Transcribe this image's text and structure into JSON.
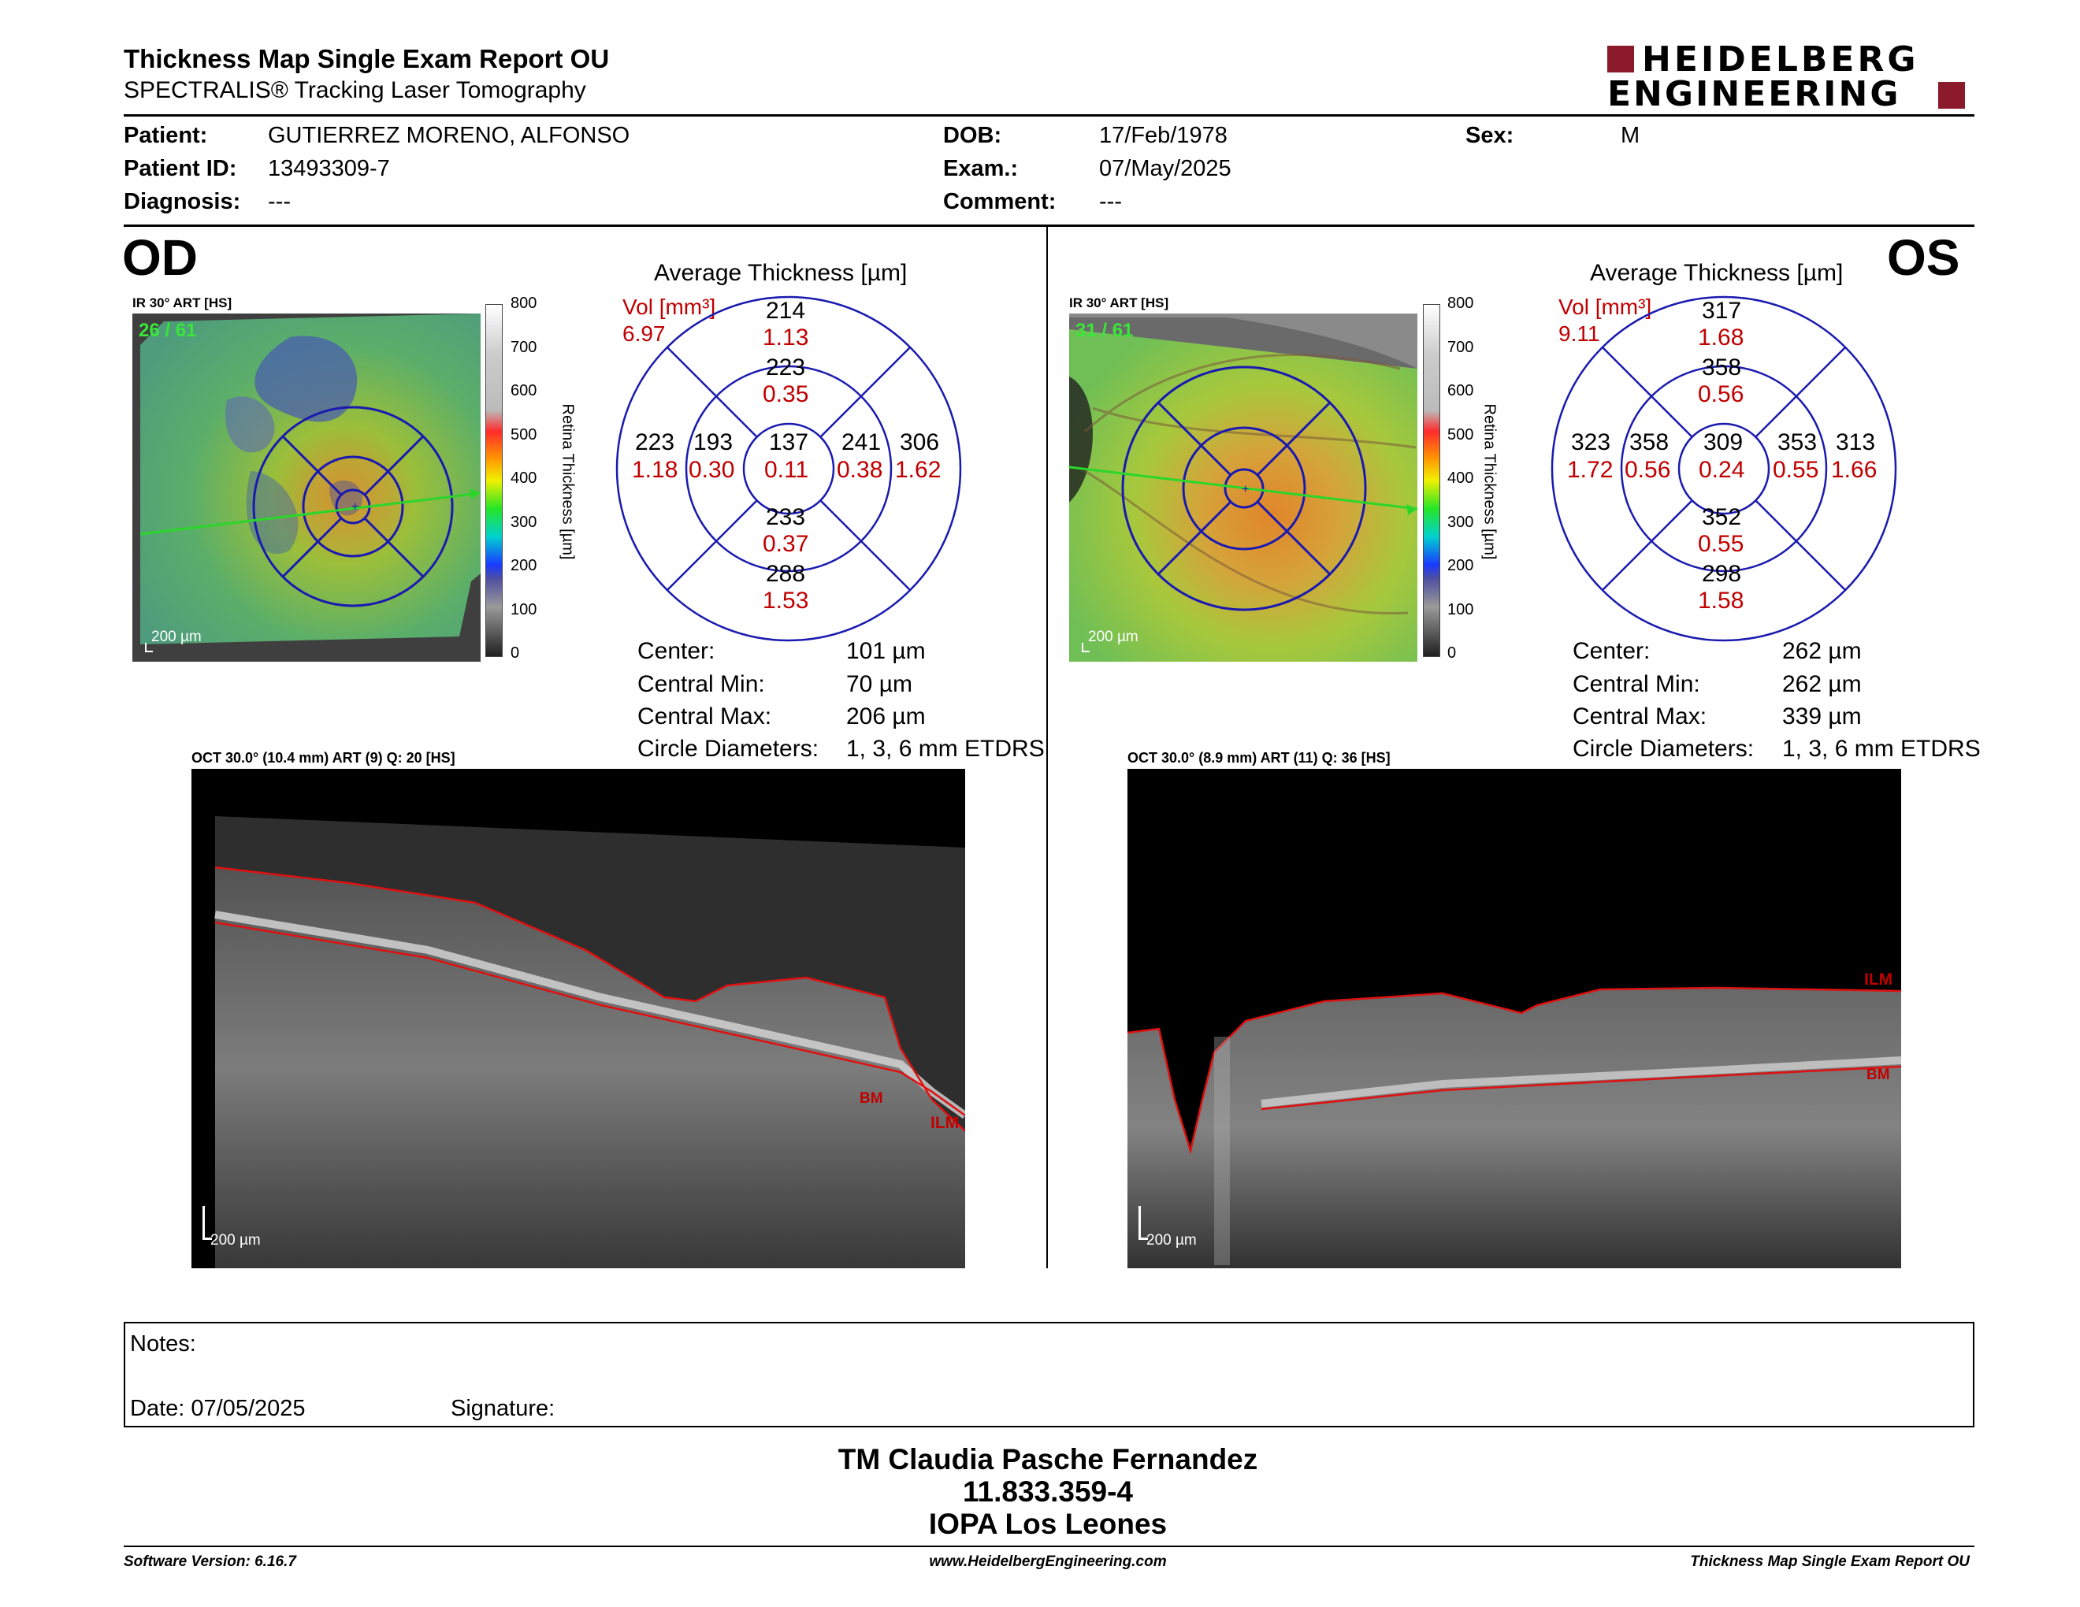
{
  "header": {
    "title": "Thickness Map Single Exam Report OU",
    "subtitle": "SPECTRALIS® Tracking Laser Tomography",
    "brand_line1": "HEIDELBERG",
    "brand_line2": "ENGINEERING",
    "brand_color": "#8b1a2b"
  },
  "patient": {
    "patient_label": "Patient:",
    "patient_value": "GUTIERREZ MORENO, ALFONSO",
    "id_label": "Patient ID:",
    "id_value": "13493309-7",
    "diag_label": "Diagnosis:",
    "diag_value": "---",
    "dob_label": "DOB:",
    "dob_value": "17/Feb/1978",
    "exam_label": "Exam.:",
    "exam_value": "07/May/2025",
    "comment_label": "Comment:",
    "comment_value": "---",
    "sex_label": "Sex:",
    "sex_value": "M"
  },
  "od": {
    "eye": "OD",
    "ir_label": "IR 30° ART [HS]",
    "frame": "26 / 61",
    "scale": "200 µm",
    "colorbar_ticks": [
      "800",
      "700",
      "600",
      "500",
      "400",
      "300",
      "200",
      "100",
      "0"
    ],
    "colorbar_title": "Retina Thickness [µm]",
    "grid_title": "Average Thickness [µm]",
    "vol_label": "Vol [mm³]",
    "vol_value": "6.97",
    "sectors": {
      "outer_sup": "214",
      "outer_sup_v": "1.13",
      "inner_sup": "223",
      "inner_sup_v": "0.35",
      "outer_left": "223",
      "outer_left_v": "1.18",
      "inner_left": "193",
      "inner_left_v": "0.30",
      "center": "137",
      "center_v": "0.11",
      "inner_right": "241",
      "inner_right_v": "0.38",
      "outer_right": "306",
      "outer_right_v": "1.62",
      "inner_inf": "233",
      "inner_inf_v": "0.37",
      "outer_inf": "288",
      "outer_inf_v": "1.53"
    },
    "stats": {
      "center_label": "Center:",
      "center": "101 µm",
      "min_label": "Central Min:",
      "min": "70 µm",
      "max_label": "Central Max:",
      "max": "206 µm",
      "diam_label": "Circle Diameters:",
      "diam": "1, 3, 6 mm ETDRS"
    },
    "oct_label": "OCT 30.0° (10.4 mm) ART (9) Q: 20 [HS]",
    "oct_scale": "200 µm",
    "ilm": "ILM",
    "bm": "BM"
  },
  "os": {
    "eye": "OS",
    "ir_label": "IR 30° ART [HS]",
    "frame": "31 / 61",
    "scale": "200 µm",
    "colorbar_ticks": [
      "800",
      "700",
      "600",
      "500",
      "400",
      "300",
      "200",
      "100",
      "0"
    ],
    "colorbar_title": "Retina Thickness [µm]",
    "grid_title": "Average Thickness [µm]",
    "vol_label": "Vol [mm³]",
    "vol_value": "9.11",
    "sectors": {
      "outer_sup": "317",
      "outer_sup_v": "1.68",
      "inner_sup": "358",
      "inner_sup_v": "0.56",
      "outer_left": "323",
      "outer_left_v": "1.72",
      "inner_left": "358",
      "inner_left_v": "0.56",
      "center": "309",
      "center_v": "0.24",
      "inner_right": "353",
      "inner_right_v": "0.55",
      "outer_right": "313",
      "outer_right_v": "1.66",
      "inner_inf": "352",
      "inner_inf_v": "0.55",
      "outer_inf": "298",
      "outer_inf_v": "1.58"
    },
    "stats": {
      "center_label": "Center:",
      "center": "262 µm",
      "min_label": "Central Min:",
      "min": "262 µm",
      "max_label": "Central Max:",
      "max": "339 µm",
      "diam_label": "Circle Diameters:",
      "diam": "1, 3, 6 mm ETDRS"
    },
    "oct_label": "OCT 30.0° (8.9 mm) ART (11) Q: 36 [HS]",
    "oct_scale": "200 µm",
    "ilm": "ILM",
    "bm": "BM"
  },
  "notes": {
    "notes_label": "Notes:",
    "date_label": "Date: 07/05/2025",
    "signature_label": "Signature:"
  },
  "signer": {
    "name": "TM Claudia Pasche Fernandez",
    "id": "11.833.359-4",
    "org": "IOPA Los Leones"
  },
  "footer": {
    "version": "Software Version: 6.16.7",
    "url": "www.HeidelbergEngineering.com",
    "report": "Thickness Map Single Exam Report OU"
  }
}
